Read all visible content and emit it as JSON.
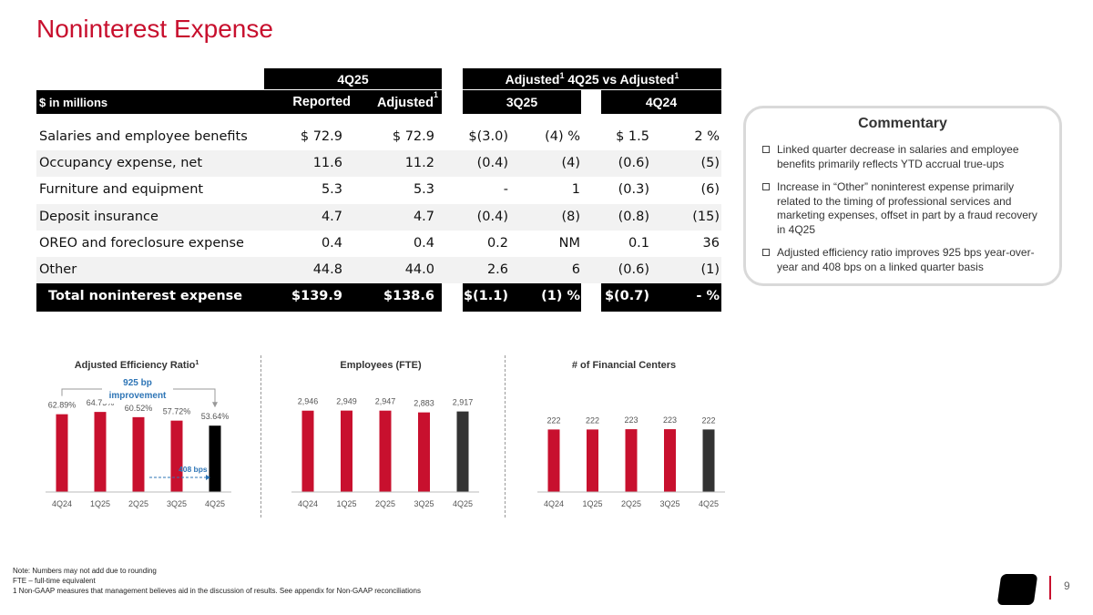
{
  "title": "Noninterest Expense",
  "table": {
    "group_4q25": "4Q25",
    "group_adjusted": "Adjusted",
    "group_vs": "4Q25 vs Adjusted",
    "sup1": "1",
    "units_label": "$ in millions",
    "col_reported": "Reported",
    "col_adjusted": "Adjusted",
    "col_3q25": "3Q25",
    "col_4q24": "4Q24",
    "rows": [
      {
        "label": "Salaries and employee benefits",
        "reported": "$  72.9",
        "adjusted": "$  72.9",
        "d3q": "$(3.0)",
        "p3q": "(4) %",
        "d4q": "$  1.5",
        "p4q": "2  %"
      },
      {
        "label": "Occupancy expense, net",
        "reported": "11.6",
        "adjusted": "11.2",
        "d3q": "(0.4)",
        "p3q": "(4)",
        "d4q": "(0.6)",
        "p4q": "(5)"
      },
      {
        "label": "Furniture and equipment",
        "reported": "5.3",
        "adjusted": "5.3",
        "d3q": "-",
        "p3q": "1",
        "d4q": "(0.3)",
        "p4q": "(6)"
      },
      {
        "label": "Deposit insurance",
        "reported": "4.7",
        "adjusted": "4.7",
        "d3q": "(0.4)",
        "p3q": "(8)",
        "d4q": "(0.8)",
        "p4q": "(15)"
      },
      {
        "label": "OREO and foreclosure expense",
        "reported": "0.4",
        "adjusted": "0.4",
        "d3q": "0.2",
        "p3q": "NM",
        "d4q": "0.1",
        "p4q": "36"
      },
      {
        "label": "Other",
        "reported": "44.8",
        "adjusted": "44.0",
        "d3q": "2.6",
        "p3q": "6",
        "d4q": "(0.6)",
        "p4q": "(1)"
      }
    ],
    "total": {
      "label": "Total noninterest expense",
      "reported": "$139.9",
      "adjusted": "$138.6",
      "d3q": "$(1.1)",
      "p3q": "(1) %",
      "d4q": "$(0.7)",
      "p4q": "-  %"
    }
  },
  "commentary": {
    "heading": "Commentary",
    "items": [
      "Linked quarter decrease in salaries and employee benefits primarily reflects YTD accrual true-ups",
      "Increase in “Other” noninterest expense primarily related to the timing of professional services and marketing expenses, offset in part by a fraud recovery in 4Q25",
      "Adjusted efficiency ratio improves 925 bps year-over-year and 408 bps on a linked quarter basis"
    ]
  },
  "chart_data": [
    {
      "type": "bar",
      "title": "Adjusted Efficiency Ratio",
      "title_sup": "1",
      "categories": [
        "4Q24",
        "1Q25",
        "2Q25",
        "3Q25",
        "4Q25"
      ],
      "values": [
        62.89,
        64.75,
        60.52,
        57.72,
        53.64
      ],
      "labels": [
        "62.89%",
        "64.75%",
        "60.52%",
        "57.72%",
        "53.64%"
      ],
      "ylim": [
        0,
        70
      ],
      "annotation_top": "925 bp improvement",
      "annotation_top_l1": "925 bp",
      "annotation_top_l2": "improvement",
      "annotation_side": "408 bps"
    },
    {
      "type": "bar",
      "title": "Employees (FTE)",
      "categories": [
        "4Q24",
        "1Q25",
        "2Q25",
        "3Q25",
        "4Q25"
      ],
      "values": [
        2946,
        2949,
        2947,
        2883,
        2917
      ],
      "labels": [
        "2,946",
        "2,949",
        "2,947",
        "2,883",
        "2,917"
      ],
      "ylim": [
        0,
        3300
      ]
    },
    {
      "type": "bar",
      "title": "# of Financial Centers",
      "categories": [
        "4Q24",
        "1Q25",
        "2Q25",
        "3Q25",
        "4Q25"
      ],
      "values": [
        222,
        222,
        223,
        223,
        222
      ],
      "labels": [
        "222",
        "222",
        "223",
        "223",
        "222"
      ],
      "ylim": [
        0,
        275
      ]
    }
  ],
  "colors": {
    "red": "#c8102e",
    "dark": "#333333",
    "black": "#000000",
    "blue": "#2e75b6"
  },
  "footnotes": [
    "Note: Numbers may not add due to rounding",
    "FTE – full-time equivalent",
    "1   Non-GAAP measures that management believes aid in the discussion of results. See appendix for Non-GAAP reconciliations"
  ],
  "page_number": "9"
}
